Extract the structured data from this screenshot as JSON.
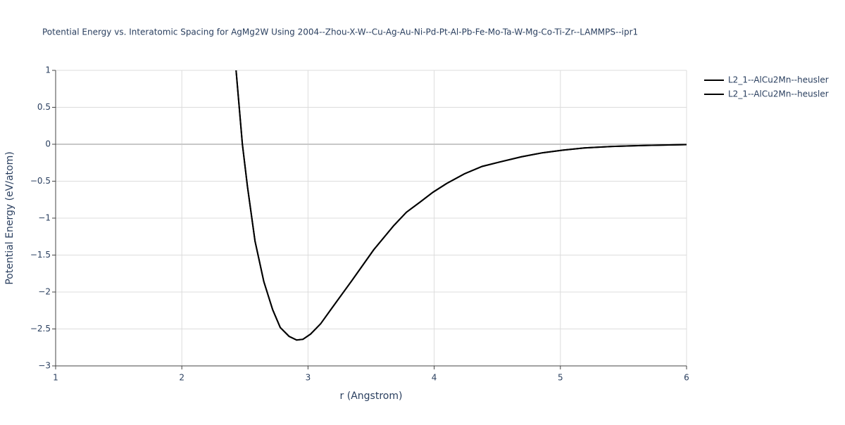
{
  "chart_data": {
    "type": "line",
    "title": "Potential Energy vs. Interatomic Spacing for AgMg2W Using 2004--Zhou-X-W--Cu-Ag-Au-Ni-Pd-Pt-Al-Pb-Fe-Mo-Ta-W-Mg-Co-Ti-Zr--LAMMPS--ipr1",
    "x_label": "r (Angstrom)",
    "y_label": "Potential Energy (eV/atom)",
    "xlim": [
      1,
      6
    ],
    "ylim": [
      -3,
      1
    ],
    "xticks": [
      1,
      2,
      3,
      4,
      5,
      6
    ],
    "yticks": [
      {
        "value": -3,
        "label": "−3"
      },
      {
        "value": -2.5,
        "label": "−2.5"
      },
      {
        "value": -2,
        "label": "−2"
      },
      {
        "value": -1.5,
        "label": "−1.5"
      },
      {
        "value": -1,
        "label": "−1"
      },
      {
        "value": -0.5,
        "label": "−0.5"
      },
      0,
      0.5,
      1
    ],
    "grid": true,
    "legend": "top-right",
    "x": [
      2.43,
      2.48,
      2.52,
      2.58,
      2.65,
      2.72,
      2.78,
      2.85,
      2.91,
      2.96,
      3.02,
      3.1,
      3.18,
      3.35,
      3.52,
      3.68,
      3.78,
      3.89,
      3.99,
      4.1,
      4.24,
      4.38,
      4.52,
      4.69,
      4.86,
      5.02,
      5.19,
      5.41,
      5.69,
      6.0
    ],
    "series": [
      {
        "name": "L2_1--AlCu2Mn--heusler",
        "color": "#000000",
        "values": [
          1,
          0,
          -0.57,
          -1.31,
          -1.86,
          -2.24,
          -2.48,
          -2.6,
          -2.65,
          -2.64,
          -2.57,
          -2.43,
          -2.24,
          -1.84,
          -1.43,
          -1.1,
          -0.92,
          -0.78,
          -0.65,
          -0.53,
          -0.4,
          -0.3,
          -0.24,
          -0.17,
          -0.115,
          -0.08,
          -0.05,
          -0.03,
          -0.015,
          -0.005
        ]
      },
      {
        "name": "L2_1--AlCu2Mn--heusler",
        "color": "#000000",
        "values": [
          1,
          0,
          -0.57,
          -1.31,
          -1.86,
          -2.24,
          -2.48,
          -2.6,
          -2.65,
          -2.64,
          -2.57,
          -2.43,
          -2.24,
          -1.84,
          -1.43,
          -1.1,
          -0.92,
          -0.78,
          -0.65,
          -0.53,
          -0.4,
          -0.3,
          -0.24,
          -0.17,
          -0.115,
          -0.08,
          -0.05,
          -0.03,
          -0.015,
          -0.005
        ]
      }
    ]
  }
}
